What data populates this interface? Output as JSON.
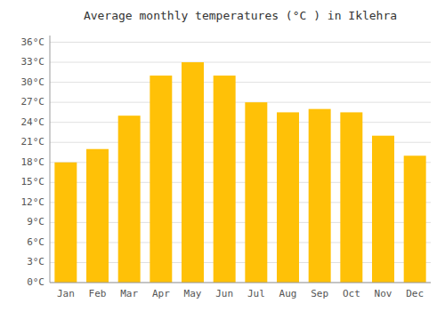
{
  "chart_data": {
    "type": "bar",
    "title": "Average monthly temperatures (°C ) in Iklehra",
    "categories": [
      "Jan",
      "Feb",
      "Mar",
      "Apr",
      "May",
      "Jun",
      "Jul",
      "Aug",
      "Sep",
      "Oct",
      "Nov",
      "Dec"
    ],
    "values": [
      18,
      20,
      25,
      31,
      33,
      31,
      27,
      25.5,
      26,
      25.5,
      22,
      19
    ],
    "color": "#FFC107",
    "ylim": [
      0,
      37
    ],
    "yticks": [
      {
        "value": 0,
        "label": "0°C"
      },
      {
        "value": 3,
        "label": "3°C"
      },
      {
        "value": 6,
        "label": "6°C"
      },
      {
        "value": 9,
        "label": "9°C"
      },
      {
        "value": 12,
        "label": "12°C"
      },
      {
        "value": 15,
        "label": "15°C"
      },
      {
        "value": 18,
        "label": "18°C"
      },
      {
        "value": 21,
        "label": "21°C"
      },
      {
        "value": 24,
        "label": "24°C"
      },
      {
        "value": 27,
        "label": "27°C"
      },
      {
        "value": 30,
        "label": "30°C"
      },
      {
        "value": 33,
        "label": "33°C"
      },
      {
        "value": 36,
        "label": "36°C"
      }
    ],
    "grid": true
  }
}
